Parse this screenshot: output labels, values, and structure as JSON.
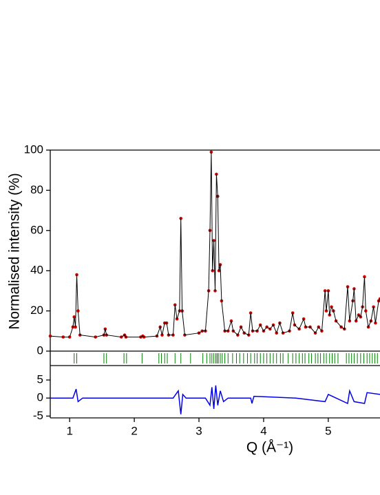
{
  "chart_data": {
    "type": "line",
    "x_label": "Q (Å⁻¹)",
    "y_label": "Normalised intensity (%)",
    "xlim": [
      0.7,
      5.8
    ],
    "xticks": [
      1,
      2,
      3,
      4,
      5
    ],
    "ylim": [
      0,
      100
    ],
    "yticks": [
      0,
      20,
      40,
      60,
      80,
      100
    ],
    "y2lim": [
      -5.5,
      9
    ],
    "y2ticks": [
      5,
      0,
      -5
    ],
    "series": [
      {
        "color": "#d40000",
        "marker": true,
        "x": [
          0.7,
          0.9,
          1.0,
          1.05,
          1.07,
          1.09,
          1.11,
          1.13,
          1.16,
          1.4,
          1.53,
          1.55,
          1.57,
          1.8,
          1.85,
          1.87,
          2.1,
          2.13,
          2.15,
          2.35,
          2.4,
          2.43,
          2.47,
          2.5,
          2.53,
          2.6,
          2.63,
          2.66,
          2.7,
          2.72,
          2.74,
          2.78,
          3.0,
          3.05,
          3.1,
          3.15,
          3.17,
          3.19,
          3.21,
          3.23,
          3.25,
          3.27,
          3.29,
          3.31,
          3.33,
          3.35,
          3.4,
          3.45,
          3.5,
          3.53,
          3.6,
          3.65,
          3.7,
          3.77,
          3.8,
          3.83,
          3.9,
          3.95,
          4.0,
          4.05,
          4.1,
          4.15,
          4.2,
          4.25,
          4.3,
          4.4,
          4.45,
          4.48,
          4.55,
          4.62,
          4.65,
          4.72,
          4.8,
          4.85,
          4.9,
          4.95,
          4.97,
          5.0,
          5.02,
          5.05,
          5.08,
          5.12,
          5.2,
          5.25,
          5.3,
          5.33,
          5.38,
          5.4,
          5.43,
          5.47,
          5.5,
          5.53,
          5.56,
          5.58,
          5.62,
          5.66,
          5.7,
          5.73,
          5.78,
          5.8
        ],
        "values": [
          7.5,
          7,
          7,
          12,
          17,
          12,
          38,
          20,
          8,
          7,
          8,
          11,
          8,
          7,
          8,
          7,
          7,
          7.5,
          7,
          7.5,
          12,
          8,
          14,
          14,
          8,
          8,
          23,
          16,
          20,
          66,
          20,
          8,
          9,
          10,
          10,
          30,
          60,
          99,
          40,
          55,
          30,
          88,
          77,
          40,
          43,
          25,
          10,
          10,
          15,
          10,
          8,
          12,
          9,
          8,
          19,
          10,
          10,
          13,
          10,
          12,
          11,
          13,
          9,
          14,
          9,
          10,
          19,
          13,
          11,
          16,
          12,
          12,
          9,
          12,
          10,
          30,
          20,
          30,
          18,
          22,
          20,
          15,
          12,
          11,
          32,
          15,
          25,
          31,
          15,
          18,
          17,
          22,
          37,
          20,
          12,
          15,
          22,
          14,
          25,
          26
        ]
      },
      {
        "color": "#000000",
        "x": [
          0.7,
          0.9,
          1.0,
          1.05,
          1.07,
          1.09,
          1.11,
          1.13,
          1.16,
          1.4,
          1.53,
          1.55,
          1.57,
          1.8,
          1.85,
          1.87,
          2.1,
          2.13,
          2.15,
          2.35,
          2.4,
          2.43,
          2.47,
          2.5,
          2.53,
          2.6,
          2.63,
          2.66,
          2.7,
          2.72,
          2.74,
          2.78,
          3.0,
          3.05,
          3.1,
          3.15,
          3.17,
          3.19,
          3.21,
          3.23,
          3.25,
          3.27,
          3.29,
          3.31,
          3.33,
          3.35,
          3.4,
          3.45,
          3.5,
          3.53,
          3.6,
          3.65,
          3.7,
          3.77,
          3.8,
          3.83,
          3.9,
          3.95,
          4.0,
          4.05,
          4.1,
          4.15,
          4.2,
          4.25,
          4.3,
          4.4,
          4.45,
          4.48,
          4.55,
          4.62,
          4.65,
          4.72,
          4.8,
          4.85,
          4.9,
          4.95,
          4.97,
          5.0,
          5.02,
          5.05,
          5.08,
          5.12,
          5.2,
          5.25,
          5.3,
          5.33,
          5.38,
          5.4,
          5.43,
          5.47,
          5.5,
          5.53,
          5.56,
          5.58,
          5.62,
          5.66,
          5.7,
          5.73,
          5.78,
          5.8
        ],
        "values": [
          7.5,
          7,
          7,
          12,
          17,
          12,
          38,
          20,
          8,
          7,
          8,
          11,
          8,
          7,
          8,
          7,
          7,
          7.5,
          7,
          7.5,
          12,
          8,
          14,
          14,
          8,
          8,
          23,
          16,
          20,
          66,
          20,
          8,
          9,
          10,
          10,
          30,
          60,
          99,
          40,
          55,
          30,
          88,
          77,
          40,
          43,
          25,
          10,
          10,
          15,
          10,
          8,
          12,
          9,
          8,
          19,
          10,
          10,
          13,
          10,
          12,
          11,
          13,
          9,
          14,
          9,
          10,
          19,
          13,
          11,
          16,
          12,
          12,
          9,
          12,
          10,
          30,
          20,
          30,
          18,
          22,
          20,
          15,
          12,
          11,
          32,
          15,
          25,
          31,
          15,
          18,
          17,
          22,
          37,
          20,
          12,
          15,
          22,
          14,
          25,
          26
        ]
      },
      {
        "color": "#0000ee",
        "axis": "y2",
        "x": [
          0.7,
          1.05,
          1.1,
          1.13,
          1.2,
          2.6,
          2.68,
          2.72,
          2.75,
          2.8,
          3.1,
          3.17,
          3.2,
          3.23,
          3.26,
          3.29,
          3.33,
          3.38,
          3.45,
          3.8,
          3.82,
          3.85,
          4.5,
          4.95,
          5.0,
          5.3,
          5.33,
          5.4,
          5.56,
          5.6,
          5.8
        ],
        "values": [
          0,
          0,
          2.5,
          -1,
          0,
          0,
          2,
          -4.5,
          1,
          0,
          0,
          -2,
          3,
          -3,
          3.5,
          -2,
          2,
          -1,
          0,
          0,
          -1.5,
          0.5,
          0,
          -1,
          1,
          -1.5,
          2,
          -1,
          -1.5,
          1.5,
          1
        ]
      }
    ],
    "reflections": {
      "color": "#008000",
      "x": [
        1.07,
        1.11,
        1.53,
        1.57,
        1.84,
        1.88,
        2.12,
        2.38,
        2.42,
        2.47,
        2.51,
        2.63,
        2.72,
        2.87,
        3.06,
        3.12,
        3.17,
        3.2,
        3.23,
        3.26,
        3.28,
        3.3,
        3.33,
        3.36,
        3.4,
        3.45,
        3.52,
        3.58,
        3.63,
        3.69,
        3.75,
        3.8,
        3.86,
        3.9,
        3.95,
        4.0,
        4.05,
        4.1,
        4.15,
        4.2,
        4.26,
        4.3,
        4.38,
        4.45,
        4.5,
        4.55,
        4.6,
        4.64,
        4.7,
        4.74,
        4.8,
        4.84,
        4.88,
        4.93,
        4.97,
        5.02,
        5.06,
        5.1,
        5.15,
        5.28,
        5.32,
        5.36,
        5.4,
        5.45,
        5.5,
        5.55,
        5.6,
        5.64,
        5.68,
        5.72,
        5.76
      ]
    }
  }
}
